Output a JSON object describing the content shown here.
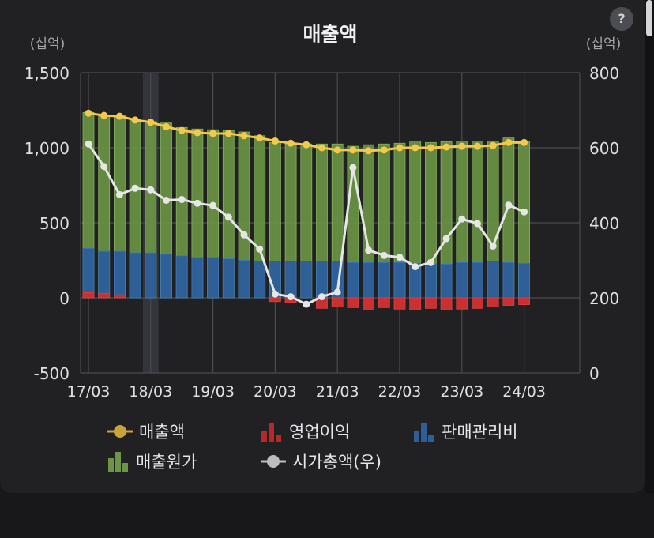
{
  "title": "매출액",
  "help_label": "?",
  "chart_data": {
    "type": "bar",
    "title": "매출액",
    "left_unit": "(십억)",
    "right_unit": "(십억)",
    "left_axis": {
      "min": -500,
      "max": 1500,
      "ticks": [
        -500,
        0,
        500,
        1000,
        1500
      ],
      "tick_labels": [
        "-500",
        "0",
        "500",
        "1,000",
        "1,500"
      ]
    },
    "right_axis": {
      "min": 0,
      "max": 800,
      "ticks": [
        0,
        200,
        400,
        600,
        800
      ],
      "tick_labels": [
        "0",
        "200",
        "400",
        "600",
        "800"
      ]
    },
    "x_tick_labels": [
      "17/03",
      "18/03",
      "19/03",
      "20/03",
      "21/03",
      "22/03",
      "23/03",
      "24/03"
    ],
    "highlight_period": "18/03",
    "grid": true,
    "periods": [
      "17/03",
      "17/06",
      "17/09",
      "17/12",
      "18/03",
      "18/06",
      "18/09",
      "18/12",
      "19/03",
      "19/06",
      "19/09",
      "19/12",
      "20/03",
      "20/06",
      "20/09",
      "20/12",
      "21/03",
      "21/06",
      "21/09",
      "21/12",
      "22/03",
      "22/06",
      "22/09",
      "22/12",
      "23/03",
      "23/06",
      "23/09",
      "23/12",
      "24/03"
    ],
    "series": [
      {
        "name": "매출액",
        "kind": "line",
        "axis": "left",
        "color": "#f2c94c",
        "values": [
          1230,
          1215,
          1210,
          1185,
          1170,
          1140,
          1115,
          1100,
          1095,
          1095,
          1080,
          1065,
          1045,
          1030,
          1020,
          1000,
          985,
          985,
          980,
          985,
          1000,
          1000,
          1000,
          1005,
          1010,
          1010,
          1015,
          1035,
          1035
        ]
      },
      {
        "name": "매출원가",
        "kind": "bar",
        "axis": "left",
        "color": "#6c9645",
        "values": [
          1235,
          1210,
          1215,
          1190,
          1175,
          1165,
          1135,
          1125,
          1120,
          1115,
          1105,
          1080,
          1035,
          1025,
          1025,
          1025,
          1025,
          1010,
          1020,
          1025,
          1030,
          1045,
          1035,
          1040,
          1045,
          1045,
          1045,
          1065,
          1045
        ]
      },
      {
        "name": "판매관리비",
        "kind": "bar",
        "axis": "left",
        "color": "#2e5f96",
        "values": [
          330,
          310,
          310,
          300,
          300,
          290,
          280,
          270,
          270,
          260,
          250,
          245,
          245,
          245,
          245,
          245,
          245,
          235,
          235,
          235,
          235,
          230,
          225,
          225,
          235,
          235,
          245,
          235,
          230
        ]
      },
      {
        "name": "영업이익",
        "kind": "bar",
        "axis": "left",
        "color": "#c93030",
        "values": [
          35,
          30,
          20,
          0,
          0,
          0,
          0,
          0,
          0,
          0,
          0,
          0,
          -25,
          -30,
          0,
          -70,
          -60,
          -65,
          -80,
          -65,
          -75,
          -80,
          -70,
          -80,
          -75,
          -70,
          -60,
          -50,
          -45
        ]
      },
      {
        "name": "시가총액(우)",
        "kind": "line",
        "axis": "right",
        "color": "#e6e6e6",
        "values": [
          610,
          550,
          475,
          492,
          488,
          460,
          462,
          452,
          446,
          415,
          368,
          330,
          210,
          203,
          183,
          203,
          215,
          547,
          327,
          313,
          308,
          283,
          294,
          358,
          410,
          398,
          338,
          447,
          429
        ]
      }
    ]
  },
  "legend": [
    {
      "label": "매출액",
      "icon": "line-marker-gold"
    },
    {
      "label": "영업이익",
      "icon": "bar-icon-red"
    },
    {
      "label": "판매관리비",
      "icon": "bar-icon-blue"
    },
    {
      "label": "매출원가",
      "icon": "bar-icon-green"
    },
    {
      "label": "시가총액(우)",
      "icon": "line-marker-gray"
    }
  ]
}
